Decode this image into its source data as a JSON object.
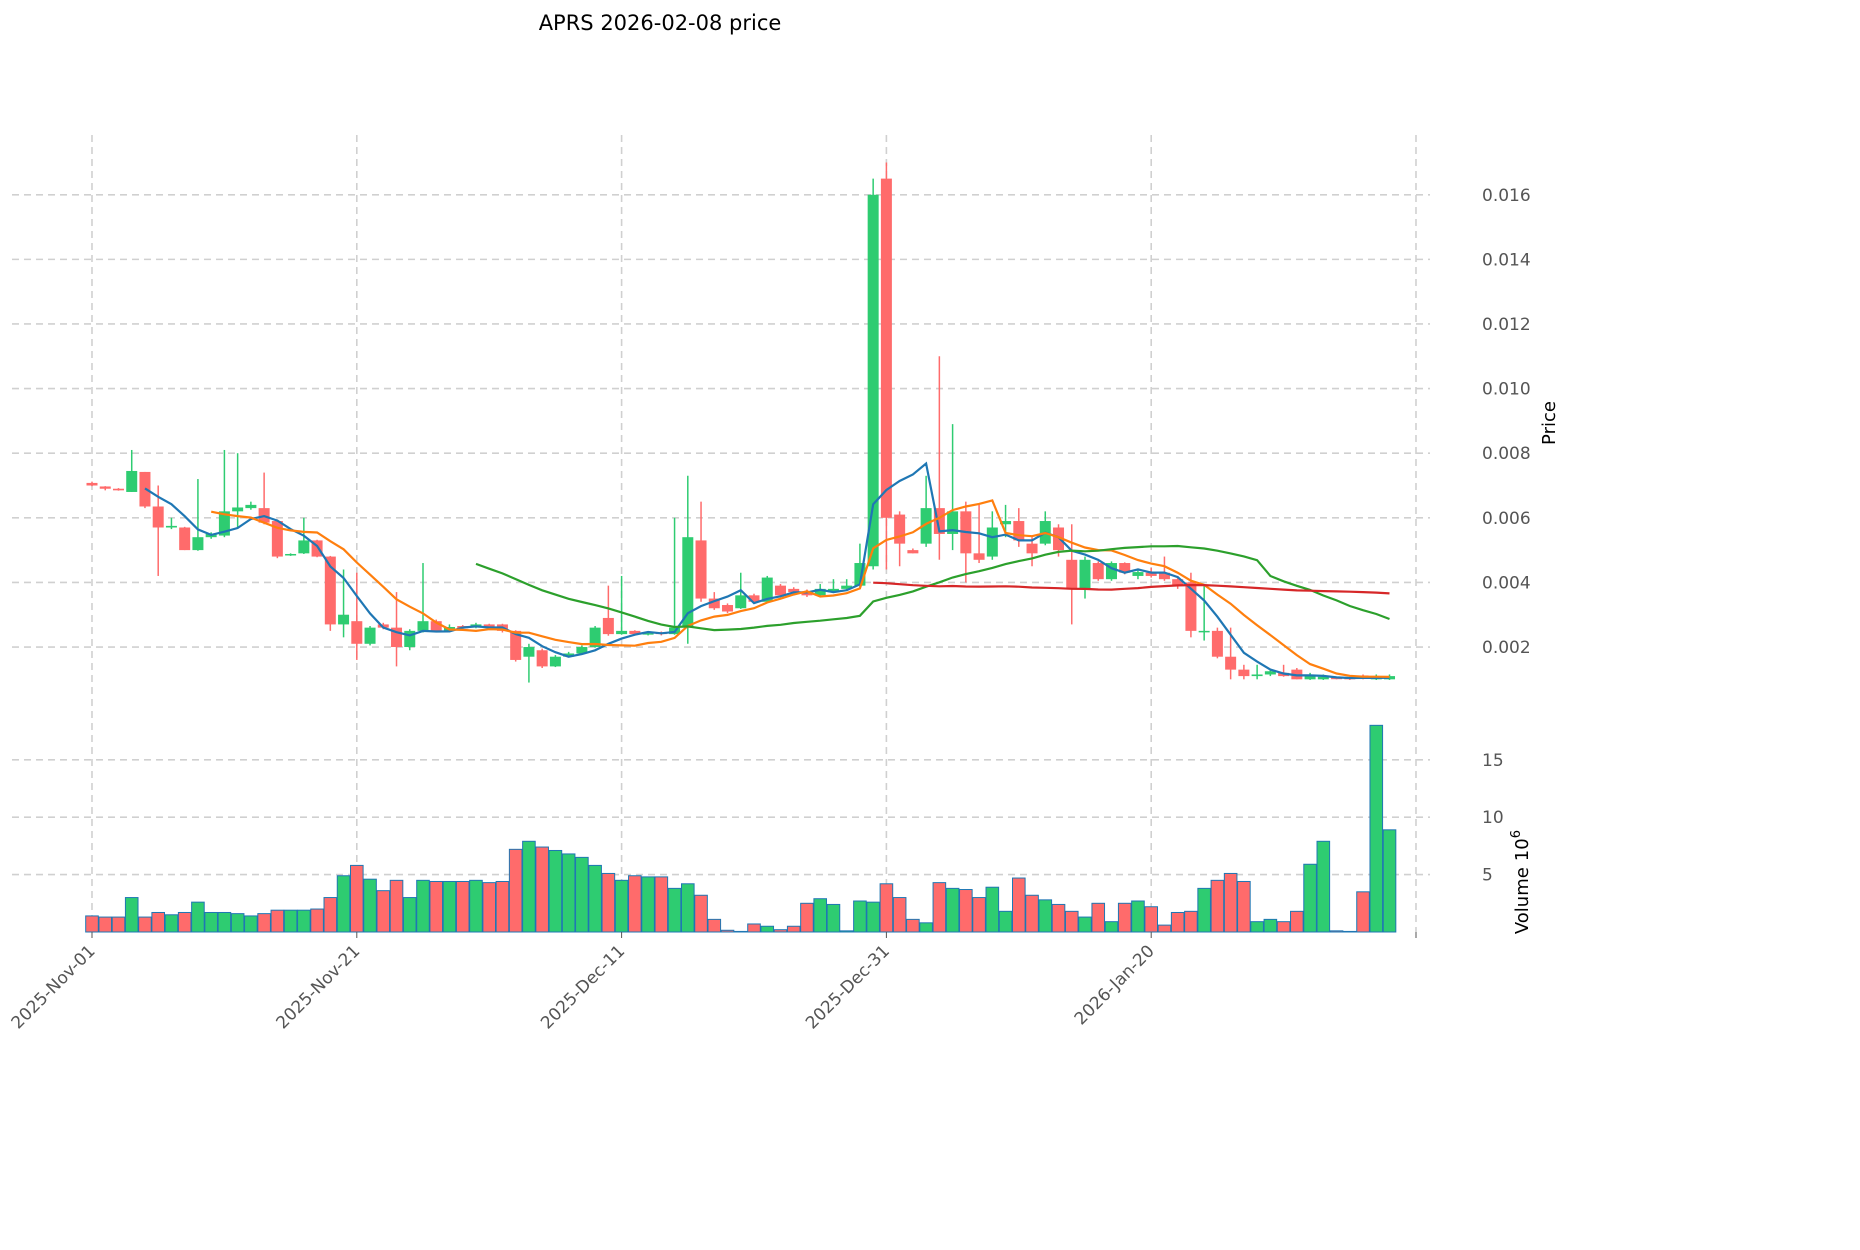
{
  "chart_data": {
    "type": "candlestick",
    "title": "APRS  2026-02-08  price",
    "ylabel": "Price",
    "volume_label": "Volume",
    "volume_exponent": "6",
    "start_date": "2025-11-01",
    "x_tick_labels": [
      "2025-Nov-01",
      "2025-Nov-21",
      "2025-Dec-11",
      "2025-Dec-31",
      "2026-Jan-20"
    ],
    "x_tick_index": [
      0,
      20,
      40,
      60,
      80
    ],
    "price_ticks": [
      "0.002",
      "0.004",
      "0.006",
      "0.008",
      "0.010",
      "0.012",
      "0.014",
      "0.016"
    ],
    "volume_ticks": [
      "5",
      "10",
      "15"
    ],
    "ylim": [
      0.00036,
      0.01785
    ],
    "volume_ylim": [
      0,
      18.9
    ],
    "colors": {
      "up": "#2ecc71",
      "down": "#ff6b6b",
      "ma5": "#1f77b4",
      "ma10": "#ff7f0e",
      "ma30": "#2ca02c",
      "ma60": "#d62728",
      "vol_edge": "#1f77b4"
    },
    "moving_averages": [
      5,
      10,
      30,
      60
    ],
    "ohlc": [
      [
        0.00708,
        0.00712,
        0.00698,
        0.007
      ],
      [
        0.00697,
        0.00698,
        0.00685,
        0.0069
      ],
      [
        0.0069,
        0.00692,
        0.00684,
        0.00685
      ],
      [
        0.0068,
        0.0081,
        0.0068,
        0.00745
      ],
      [
        0.00742,
        0.00742,
        0.0063,
        0.00635
      ],
      [
        0.00635,
        0.007,
        0.0042,
        0.0057
      ],
      [
        0.0057,
        0.006,
        0.00565,
        0.00575
      ],
      [
        0.0057,
        0.00572,
        0.005,
        0.005
      ],
      [
        0.005,
        0.0072,
        0.00498,
        0.0054
      ],
      [
        0.0054,
        0.00555,
        0.00535,
        0.0055
      ],
      [
        0.00545,
        0.0081,
        0.0054,
        0.0062
      ],
      [
        0.0062,
        0.008,
        0.0057,
        0.00632
      ],
      [
        0.0063,
        0.0065,
        0.00625,
        0.0064
      ],
      [
        0.0063,
        0.0074,
        0.0058,
        0.00585
      ],
      [
        0.0059,
        0.00595,
        0.00475,
        0.0048
      ],
      [
        0.00485,
        0.0049,
        0.00482,
        0.00488
      ],
      [
        0.0049,
        0.006,
        0.00488,
        0.0053
      ],
      [
        0.0053,
        0.00532,
        0.00478,
        0.0048
      ],
      [
        0.0048,
        0.00482,
        0.0025,
        0.0027
      ],
      [
        0.0027,
        0.0044,
        0.0023,
        0.003
      ],
      [
        0.0028,
        0.0043,
        0.0016,
        0.0021
      ],
      [
        0.0021,
        0.00265,
        0.00205,
        0.0026
      ],
      [
        0.0027,
        0.00275,
        0.00255,
        0.0026
      ],
      [
        0.0026,
        0.0037,
        0.0014,
        0.002
      ],
      [
        0.002,
        0.00255,
        0.0019,
        0.0025
      ],
      [
        0.0025,
        0.0046,
        0.00245,
        0.0028
      ],
      [
        0.0028,
        0.00285,
        0.00248,
        0.0025
      ],
      [
        0.0025,
        0.0027,
        0.00248,
        0.00262
      ],
      [
        0.00265,
        0.00268,
        0.00255,
        0.00258
      ],
      [
        0.0026,
        0.00275,
        0.00258,
        0.0027
      ],
      [
        0.0027,
        0.00272,
        0.00258,
        0.00262
      ],
      [
        0.0027,
        0.00272,
        0.00245,
        0.0025
      ],
      [
        0.0025,
        0.00252,
        0.00155,
        0.0016
      ],
      [
        0.0017,
        0.0021,
        0.0009,
        0.002
      ],
      [
        0.0019,
        0.00195,
        0.00135,
        0.0014
      ],
      [
        0.0014,
        0.00175,
        0.00138,
        0.0017
      ],
      [
        0.0017,
        0.00185,
        0.00168,
        0.0018
      ],
      [
        0.0018,
        0.00205,
        0.00178,
        0.002
      ],
      [
        0.002,
        0.00265,
        0.00198,
        0.0026
      ],
      [
        0.0029,
        0.0039,
        0.00235,
        0.0024
      ],
      [
        0.0024,
        0.0042,
        0.00238,
        0.0025
      ],
      [
        0.0025,
        0.00252,
        0.00238,
        0.0024
      ],
      [
        0.0024,
        0.00248,
        0.00236,
        0.00243
      ],
      [
        0.00245,
        0.00248,
        0.00236,
        0.0024
      ],
      [
        0.0024,
        0.006,
        0.00238,
        0.0026
      ],
      [
        0.0026,
        0.0073,
        0.0021,
        0.0054
      ],
      [
        0.0053,
        0.0065,
        0.0034,
        0.0035
      ],
      [
        0.0035,
        0.0037,
        0.00315,
        0.0032
      ],
      [
        0.0033,
        0.00335,
        0.00305,
        0.0031
      ],
      [
        0.0032,
        0.0043,
        0.00318,
        0.0036
      ],
      [
        0.0036,
        0.00365,
        0.00335,
        0.0034
      ],
      [
        0.0034,
        0.0042,
        0.00338,
        0.00415
      ],
      [
        0.0039,
        0.00395,
        0.00355,
        0.0036
      ],
      [
        0.0038,
        0.00385,
        0.00365,
        0.0037
      ],
      [
        0.0037,
        0.00378,
        0.00355,
        0.0036
      ],
      [
        0.0036,
        0.00395,
        0.00358,
        0.0038
      ],
      [
        0.0037,
        0.0041,
        0.00368,
        0.0038
      ],
      [
        0.0038,
        0.0041,
        0.00378,
        0.0039
      ],
      [
        0.0039,
        0.0052,
        0.00385,
        0.0046
      ],
      [
        0.0045,
        0.0165,
        0.0044,
        0.016
      ],
      [
        0.0165,
        0.017,
        0.0044,
        0.006
      ],
      [
        0.0061,
        0.0062,
        0.0045,
        0.0052
      ],
      [
        0.005,
        0.00505,
        0.0049,
        0.0049
      ],
      [
        0.0052,
        0.0073,
        0.0051,
        0.0063
      ],
      [
        0.0063,
        0.011,
        0.0047,
        0.0055
      ],
      [
        0.0055,
        0.0089,
        0.005,
        0.0062
      ],
      [
        0.0062,
        0.0065,
        0.004,
        0.0049
      ],
      [
        0.0049,
        0.0064,
        0.0046,
        0.0047
      ],
      [
        0.0048,
        0.0062,
        0.0047,
        0.0057
      ],
      [
        0.0058,
        0.0064,
        0.0054,
        0.0059
      ],
      [
        0.0059,
        0.0063,
        0.0051,
        0.0053
      ],
      [
        0.0052,
        0.0054,
        0.0045,
        0.0049
      ],
      [
        0.0052,
        0.0062,
        0.00515,
        0.0059
      ],
      [
        0.0057,
        0.0058,
        0.0048,
        0.005
      ],
      [
        0.0047,
        0.0058,
        0.0027,
        0.0038
      ],
      [
        0.0038,
        0.0048,
        0.0035,
        0.0047
      ],
      [
        0.0046,
        0.00465,
        0.00405,
        0.0041
      ],
      [
        0.0041,
        0.00465,
        0.00405,
        0.0046
      ],
      [
        0.0046,
        0.00462,
        0.00425,
        0.0043
      ],
      [
        0.0042,
        0.0044,
        0.0041,
        0.00432
      ],
      [
        0.0043,
        0.00445,
        0.00415,
        0.0042
      ],
      [
        0.0043,
        0.0048,
        0.00405,
        0.0041
      ],
      [
        0.0041,
        0.0042,
        0.0038,
        0.0039
      ],
      [
        0.004,
        0.0043,
        0.0023,
        0.0025
      ],
      [
        0.0025,
        0.0039,
        0.0022,
        0.0025
      ],
      [
        0.0025,
        0.0026,
        0.00165,
        0.0017
      ],
      [
        0.0017,
        0.0026,
        0.001,
        0.0013
      ],
      [
        0.0013,
        0.00145,
        0.001,
        0.0011
      ],
      [
        0.0011,
        0.00145,
        0.001,
        0.00115
      ],
      [
        0.00115,
        0.0013,
        0.0011,
        0.00125
      ],
      [
        0.0012,
        0.00145,
        0.00108,
        0.0011
      ],
      [
        0.0013,
        0.00135,
        0.001,
        0.001
      ],
      [
        0.001,
        0.0012,
        0.00098,
        0.0011
      ],
      [
        0.001,
        0.00115,
        0.00098,
        0.00108
      ],
      [
        0.00105,
        0.00108,
        0.001,
        0.00102
      ],
      [
        0.00105,
        0.00108,
        0.00098,
        0.001
      ],
      [
        0.00112,
        0.00115,
        0.001,
        0.00102
      ],
      [
        0.001,
        0.00115,
        0.00098,
        0.0011
      ],
      [
        0.001,
        0.00115,
        0.00098,
        0.0011
      ]
    ],
    "volume_millions": [
      1.4,
      1.3,
      1.3,
      3.0,
      1.3,
      1.7,
      1.5,
      1.7,
      2.6,
      1.7,
      1.7,
      1.6,
      1.4,
      1.6,
      1.9,
      1.9,
      1.9,
      2.0,
      3.0,
      4.9,
      5.8,
      4.6,
      3.6,
      4.5,
      3.0,
      4.5,
      4.4,
      4.4,
      4.4,
      4.5,
      4.3,
      4.4,
      7.2,
      7.9,
      7.4,
      7.1,
      6.8,
      6.5,
      5.8,
      5.1,
      4.5,
      4.9,
      4.8,
      4.8,
      3.8,
      4.2,
      3.2,
      1.1,
      0.15,
      0.05,
      0.7,
      0.5,
      0.2,
      0.5,
      2.5,
      2.9,
      2.4,
      0.1,
      2.7,
      2.6,
      4.2,
      3.0,
      1.1,
      0.8,
      4.3,
      3.8,
      3.7,
      3.0,
      3.9,
      1.8,
      4.7,
      3.2,
      2.8,
      2.4,
      1.8,
      1.3,
      2.5,
      0.9,
      2.5,
      2.7,
      2.2,
      0.6,
      1.7,
      1.8,
      3.8,
      4.5,
      5.1,
      4.4,
      0.9,
      1.1,
      0.9,
      1.8,
      5.9,
      7.9,
      0.1,
      0.05,
      3.5,
      18.0,
      8.9
    ]
  }
}
